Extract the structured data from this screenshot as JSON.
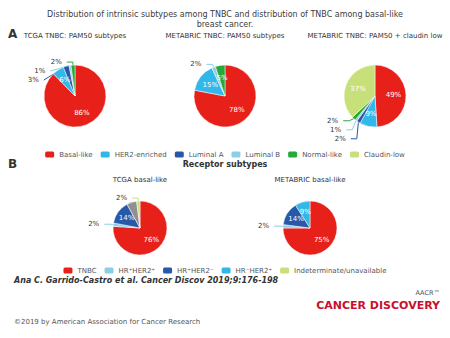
{
  "title": "Distribution of intrinsic subtypes among TNBC and distribution of TNBC among basal-like\nbreast cancer.",
  "annotations": [
    {
      "text": "Ana C. Garrido-Castro et al. Cancer Discov 2019;9:176-198"
    },
    {
      "text": "©2019 by American Association for Cancer Research",
      "color": "#555555"
    },
    {
      "text": "CANCER DISCOVERY",
      "color": "#c8102e"
    },
    {
      "text": "AACR™",
      "color": "#555555"
    }
  ],
  "chart_data": [
    {
      "type": "pie",
      "panel": "A",
      "data_labels": true,
      "series": [
        {
          "name": "Basal-like",
          "color": "#e8201a"
        },
        {
          "name": "HER2-enriched",
          "color": "#31b7e8"
        },
        {
          "name": "Luminal A",
          "color": "#2858a8"
        },
        {
          "name": "Luminal B",
          "color": "#8acfe8"
        },
        {
          "name": "Normal-like",
          "color": "#28a838"
        },
        {
          "name": "Claudin-low",
          "color": "#c8e07a"
        }
      ],
      "pies": [
        {
          "title": "TCGA TNBC: PAM50 subtypes",
          "values": [
            86,
            6,
            3,
            1,
            2
          ],
          "value_labels": [
            "86%",
            "6%",
            "3%",
            "1%",
            "2%"
          ],
          "colors": [
            "#e8201a",
            "#31b7e8",
            "#2858a8",
            "#8acfe8",
            "#28a838"
          ]
        },
        {
          "title": "METABRIC TNBC: PAM50 subtypes",
          "values": [
            78,
            15,
            2,
            5
          ],
          "value_labels": [
            "78%",
            "15%",
            "2%",
            "5%"
          ],
          "colors": [
            "#e8201a",
            "#31b7e8",
            "#8acfe8",
            "#28a838"
          ]
        },
        {
          "title": "METABRIC TNBC: PAM50 + claudin low",
          "values": [
            49,
            9,
            2,
            1,
            2,
            37
          ],
          "value_labels": [
            "49%",
            "9%",
            "2%",
            "1%",
            "2%",
            "37%"
          ],
          "colors": [
            "#e8201a",
            "#31b7e8",
            "#2858a8",
            "#8acfe8",
            "#28a838",
            "#c8e07a"
          ]
        }
      ]
    },
    {
      "type": "pie",
      "panel": "B",
      "subtitle": "Receptor subtypes",
      "data_labels": true,
      "series": [
        {
          "name": "TNBC",
          "color": "#e8201a"
        },
        {
          "name": "HR⁺HER2⁺",
          "color": "#8acfe8"
        },
        {
          "name": "HR⁺HER2⁻",
          "color": "#2858a8"
        },
        {
          "name": "HR⁻HER2⁺",
          "color": "#31b7e8"
        },
        {
          "name": "Indeterminate/unavailable",
          "color": "#c8e07a"
        }
      ],
      "pies": [
        {
          "title": "TCGA basal-like",
          "values": [
            76,
            2,
            14,
            6,
            2
          ],
          "value_labels": [
            "76%",
            "2%",
            "14%",
            "6%",
            "2%"
          ],
          "colors": [
            "#e8201a",
            "#8acfe8",
            "#2858a8",
            "#909090",
            "#c8e07a"
          ]
        },
        {
          "title": "METABRIC basal-like",
          "values": [
            75,
            2,
            14,
            9
          ],
          "value_labels": [
            "75%",
            "2%",
            "14%",
            "9%"
          ],
          "colors": [
            "#e8201a",
            "#8acfe8",
            "#2858a8",
            "#31b7e8"
          ]
        }
      ]
    }
  ]
}
